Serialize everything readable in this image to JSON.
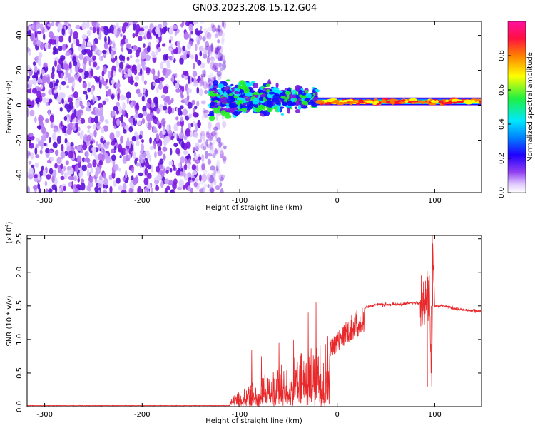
{
  "title": "GN03.2023.208.15.12.G04",
  "colors": {
    "signal": "#e8282a",
    "purple": "#7a18e0",
    "violet": "#b070f0",
    "blue": "#1010ff",
    "cyan": "#00e8ff",
    "green": "#22ee22",
    "orange": "#ff7a00",
    "red": "#ff1030"
  },
  "chart_data": [
    {
      "type": "heatmap",
      "title": "GN03.2023.208.15.12.G04",
      "xlabel": "Height of straight line (km)",
      "ylabel": "Frequency (Hz)",
      "xlim": [
        -318,
        148
      ],
      "ylim": [
        -50,
        48
      ],
      "xticks": [
        -300,
        -200,
        -100,
        0,
        100
      ],
      "yticks": [
        -40,
        -20,
        0,
        20,
        40
      ],
      "colorbar": {
        "label": "Normalized spectral amplitude",
        "range": [
          0,
          1
        ],
        "ticks": [
          "0.0",
          "0.2",
          "0.4",
          "0.6",
          "0.8"
        ],
        "ticks_values": [
          0,
          0.2,
          0.4,
          0.6,
          0.8
        ],
        "colormap": [
          "#ffffff",
          "#e0c8ff",
          "#9040f0",
          "#2000ff",
          "#0080ff",
          "#00e8ff",
          "#20f040",
          "#ffff00",
          "#ff8000",
          "#ff1040",
          "#ff10a0"
        ]
      },
      "regions": [
        {
          "description": "noise",
          "x": [
            -318,
            -130
          ],
          "freq": [
            -50,
            48
          ],
          "amplitude": [
            0.05,
            0.3
          ]
        },
        {
          "description": "turbulent signal",
          "x": [
            -130,
            -20
          ],
          "freq": [
            -8,
            14
          ],
          "amplitude": [
            0.2,
            0.5
          ]
        },
        {
          "description": "coherent signal",
          "x": [
            -20,
            148
          ],
          "freq": [
            -2,
            4
          ],
          "amplitude": [
            0.4,
            0.95
          ]
        }
      ]
    },
    {
      "type": "line",
      "xlabel": "Height of straight line (km)",
      "ylabel": "SNR (10 * v/v)",
      "multiplier": "(x10",
      "multiplier_exp": "4",
      "multiplier_close": ")",
      "xlim": [
        -318,
        148
      ],
      "ylim": [
        0,
        2.55
      ],
      "xticks": [
        -300,
        -200,
        -100,
        0,
        100
      ],
      "yticks": [
        "0.0",
        "0.5",
        "1.0",
        "1.5",
        "2.0",
        "2.5"
      ],
      "yticks_values": [
        0,
        0.5,
        1.0,
        1.5,
        2.0,
        2.5
      ],
      "series": [
        {
          "color": "#e8282a",
          "points": [
            [
              -318,
              0.01
            ],
            [
              -250,
              0.01
            ],
            [
              -200,
              0.01
            ],
            [
              -150,
              0.015
            ],
            [
              -120,
              0.03
            ],
            [
              -105,
              0.06
            ],
            [
              -95,
              0.15
            ],
            [
              -85,
              0.3
            ],
            [
              -75,
              0.4
            ],
            [
              -65,
              0.55
            ],
            [
              -55,
              0.6
            ],
            [
              -45,
              0.7
            ],
            [
              -35,
              0.85
            ],
            [
              -25,
              1.0
            ],
            [
              -15,
              0.2
            ],
            [
              -10,
              0.9
            ],
            [
              0,
              1.05
            ],
            [
              10,
              1.25
            ],
            [
              20,
              1.38
            ],
            [
              30,
              1.48
            ],
            [
              40,
              1.52
            ],
            [
              50,
              1.52
            ],
            [
              60,
              1.52
            ],
            [
              70,
              1.53
            ],
            [
              80,
              1.55
            ],
            [
              88,
              1.55
            ],
            [
              95,
              1.6
            ],
            [
              97,
              0.3
            ],
            [
              98,
              2.55
            ],
            [
              100,
              1.5
            ],
            [
              110,
              1.5
            ],
            [
              120,
              1.46
            ],
            [
              135,
              1.43
            ],
            [
              148,
              1.42
            ]
          ],
          "peaks": [
            [
              -88,
              0.85
            ],
            [
              -78,
              0.75
            ],
            [
              -60,
              0.95
            ],
            [
              -45,
              1.0
            ],
            [
              -30,
              1.4
            ],
            [
              -22,
              1.55
            ],
            [
              -10,
              1.05
            ],
            [
              92,
              2.02
            ]
          ]
        }
      ]
    }
  ]
}
